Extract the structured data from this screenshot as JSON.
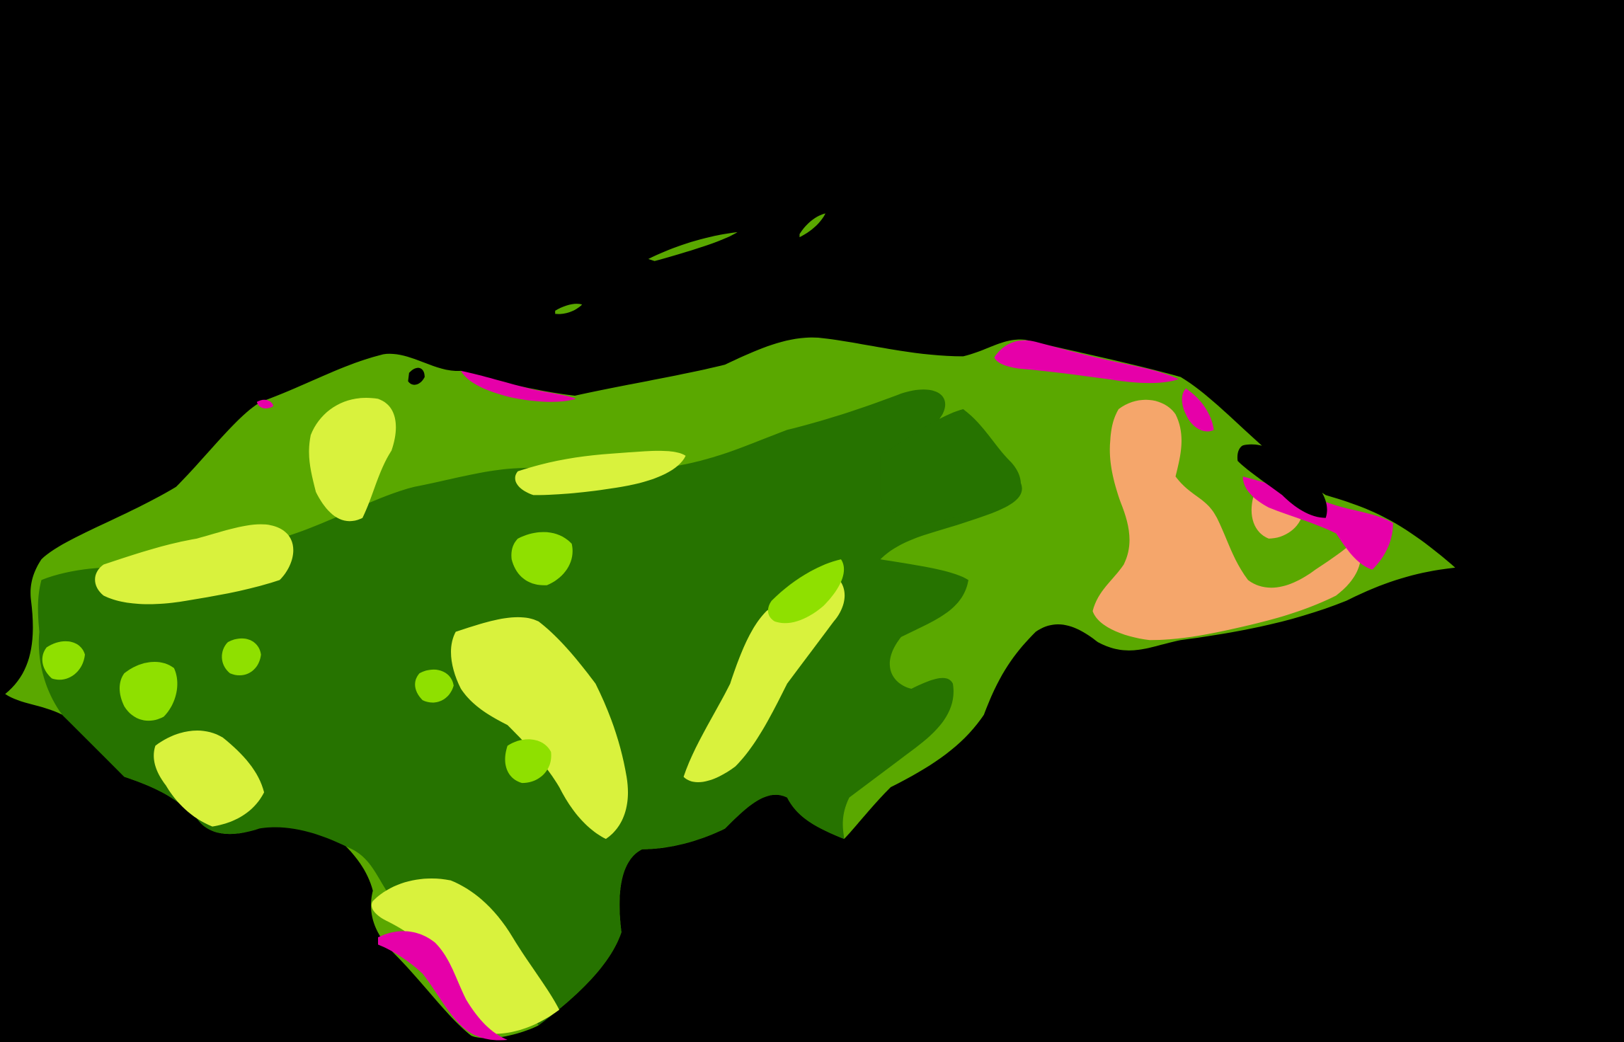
{
  "background_color": "#000000",
  "map": {
    "subject": "Honduras",
    "categories": [
      {
        "id": "lowland-forest",
        "color": "#5aa800"
      },
      {
        "id": "upland-forest",
        "color": "#267300"
      },
      {
        "id": "dry-shrubland",
        "color": "#d9f23d"
      },
      {
        "id": "montane-forest",
        "color": "#8fe000"
      },
      {
        "id": "coastal-wetland",
        "color": "#e600a9"
      },
      {
        "id": "savanna",
        "color": "#f5a66b"
      },
      {
        "id": "water",
        "color": "#000000"
      }
    ]
  }
}
